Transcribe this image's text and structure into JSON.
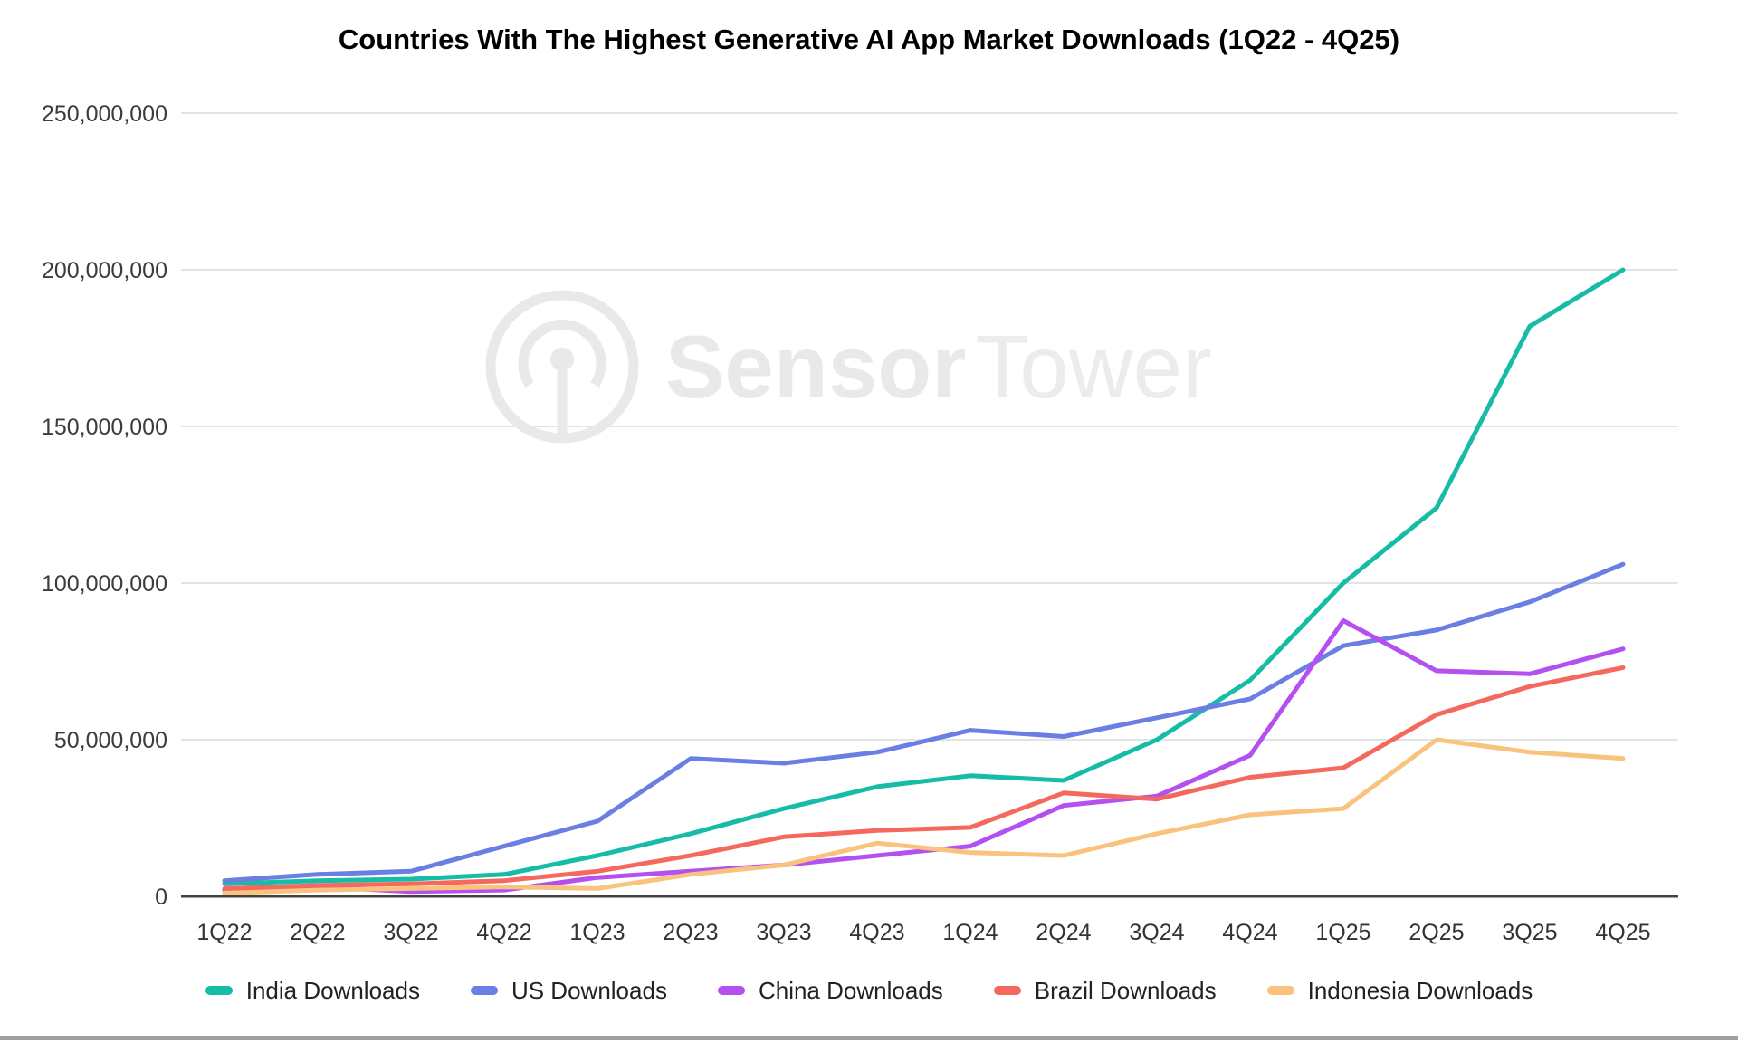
{
  "title": "Countries With The Highest Generative AI App Market Downloads (1Q22 - 4Q25)",
  "watermark": {
    "brand_bold": "Sensor",
    "brand_light": "Tower",
    "logo": "sensortower-antenna-circle",
    "color": "#e9e9e9"
  },
  "axis_colors": {
    "gridline": "#dadada",
    "axis_line": "#424242",
    "tick_label": "#3c3c3c"
  },
  "bottom_border_color": "#a0a0a0",
  "chart_data": {
    "type": "line",
    "title": "Countries With The Highest Generative AI App Market Downloads (1Q22 - 4Q25)",
    "xlabel": "",
    "ylabel": "",
    "grid": true,
    "legend_position": "bottom",
    "ylim": [
      0,
      250000000
    ],
    "ytick_interval": 50000000,
    "ytick_labels": [
      "0",
      "50,000,000",
      "100,000,000",
      "150,000,000",
      "200,000,000",
      "250,000,000"
    ],
    "categories": [
      "1Q22",
      "2Q22",
      "3Q22",
      "4Q22",
      "1Q23",
      "2Q23",
      "3Q23",
      "4Q23",
      "1Q24",
      "2Q24",
      "3Q24",
      "4Q24",
      "1Q25",
      "2Q25",
      "3Q25",
      "4Q25"
    ],
    "series": [
      {
        "name": "India Downloads",
        "color": "#17bca7",
        "values": [
          4000000,
          5000000,
          5500000,
          7000000,
          13000000,
          20000000,
          28000000,
          35000000,
          38500000,
          37000000,
          50000000,
          69000000,
          100000000,
          124000000,
          182000000,
          200000000
        ]
      },
      {
        "name": "US Downloads",
        "color": "#6a7ee3",
        "values": [
          5000000,
          7000000,
          8000000,
          16000000,
          24000000,
          44000000,
          42500000,
          46000000,
          53000000,
          51000000,
          57000000,
          63000000,
          80000000,
          85000000,
          94000000,
          106000000
        ]
      },
      {
        "name": "China Downloads",
        "color": "#b44ff0",
        "values": [
          2000000,
          3000000,
          1500000,
          2000000,
          6000000,
          8000000,
          10000000,
          13000000,
          16000000,
          29000000,
          32000000,
          45000000,
          88000000,
          72000000,
          71000000,
          79000000
        ]
      },
      {
        "name": "Brazil Downloads",
        "color": "#f4685e",
        "values": [
          2500000,
          3500000,
          4000000,
          5000000,
          8000000,
          13000000,
          19000000,
          21000000,
          22000000,
          33000000,
          31000000,
          38000000,
          41000000,
          58000000,
          67000000,
          73000000
        ]
      },
      {
        "name": "Indonesia Downloads",
        "color": "#f9c37e",
        "values": [
          1000000,
          2000000,
          2500000,
          3000000,
          2500000,
          7000000,
          10000000,
          17000000,
          14000000,
          13000000,
          20000000,
          26000000,
          28000000,
          50000000,
          46000000,
          44000000
        ]
      }
    ]
  }
}
